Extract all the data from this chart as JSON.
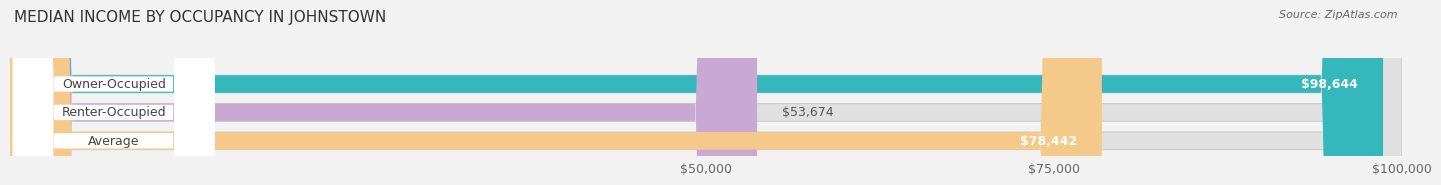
{
  "title": "MEDIAN INCOME BY OCCUPANCY IN JOHNSTOWN",
  "source": "Source: ZipAtlas.com",
  "categories": [
    "Owner-Occupied",
    "Renter-Occupied",
    "Average"
  ],
  "values": [
    98644,
    53674,
    78442
  ],
  "labels": [
    "$98,644",
    "$53,674",
    "$78,442"
  ],
  "bar_colors": [
    "#35b8bb",
    "#c9a8d4",
    "#f5c98a"
  ],
  "background_color": "#f2f2f2",
  "bar_bg_color": "#e0e0e0",
  "xlim": [
    0,
    100000
  ],
  "xticks": [
    50000,
    75000,
    100000
  ],
  "xtick_labels": [
    "$50,000",
    "$75,000",
    "$100,000"
  ],
  "title_fontsize": 11,
  "label_fontsize": 9,
  "tick_fontsize": 9,
  "source_fontsize": 8,
  "value_label_threshold": 70000
}
